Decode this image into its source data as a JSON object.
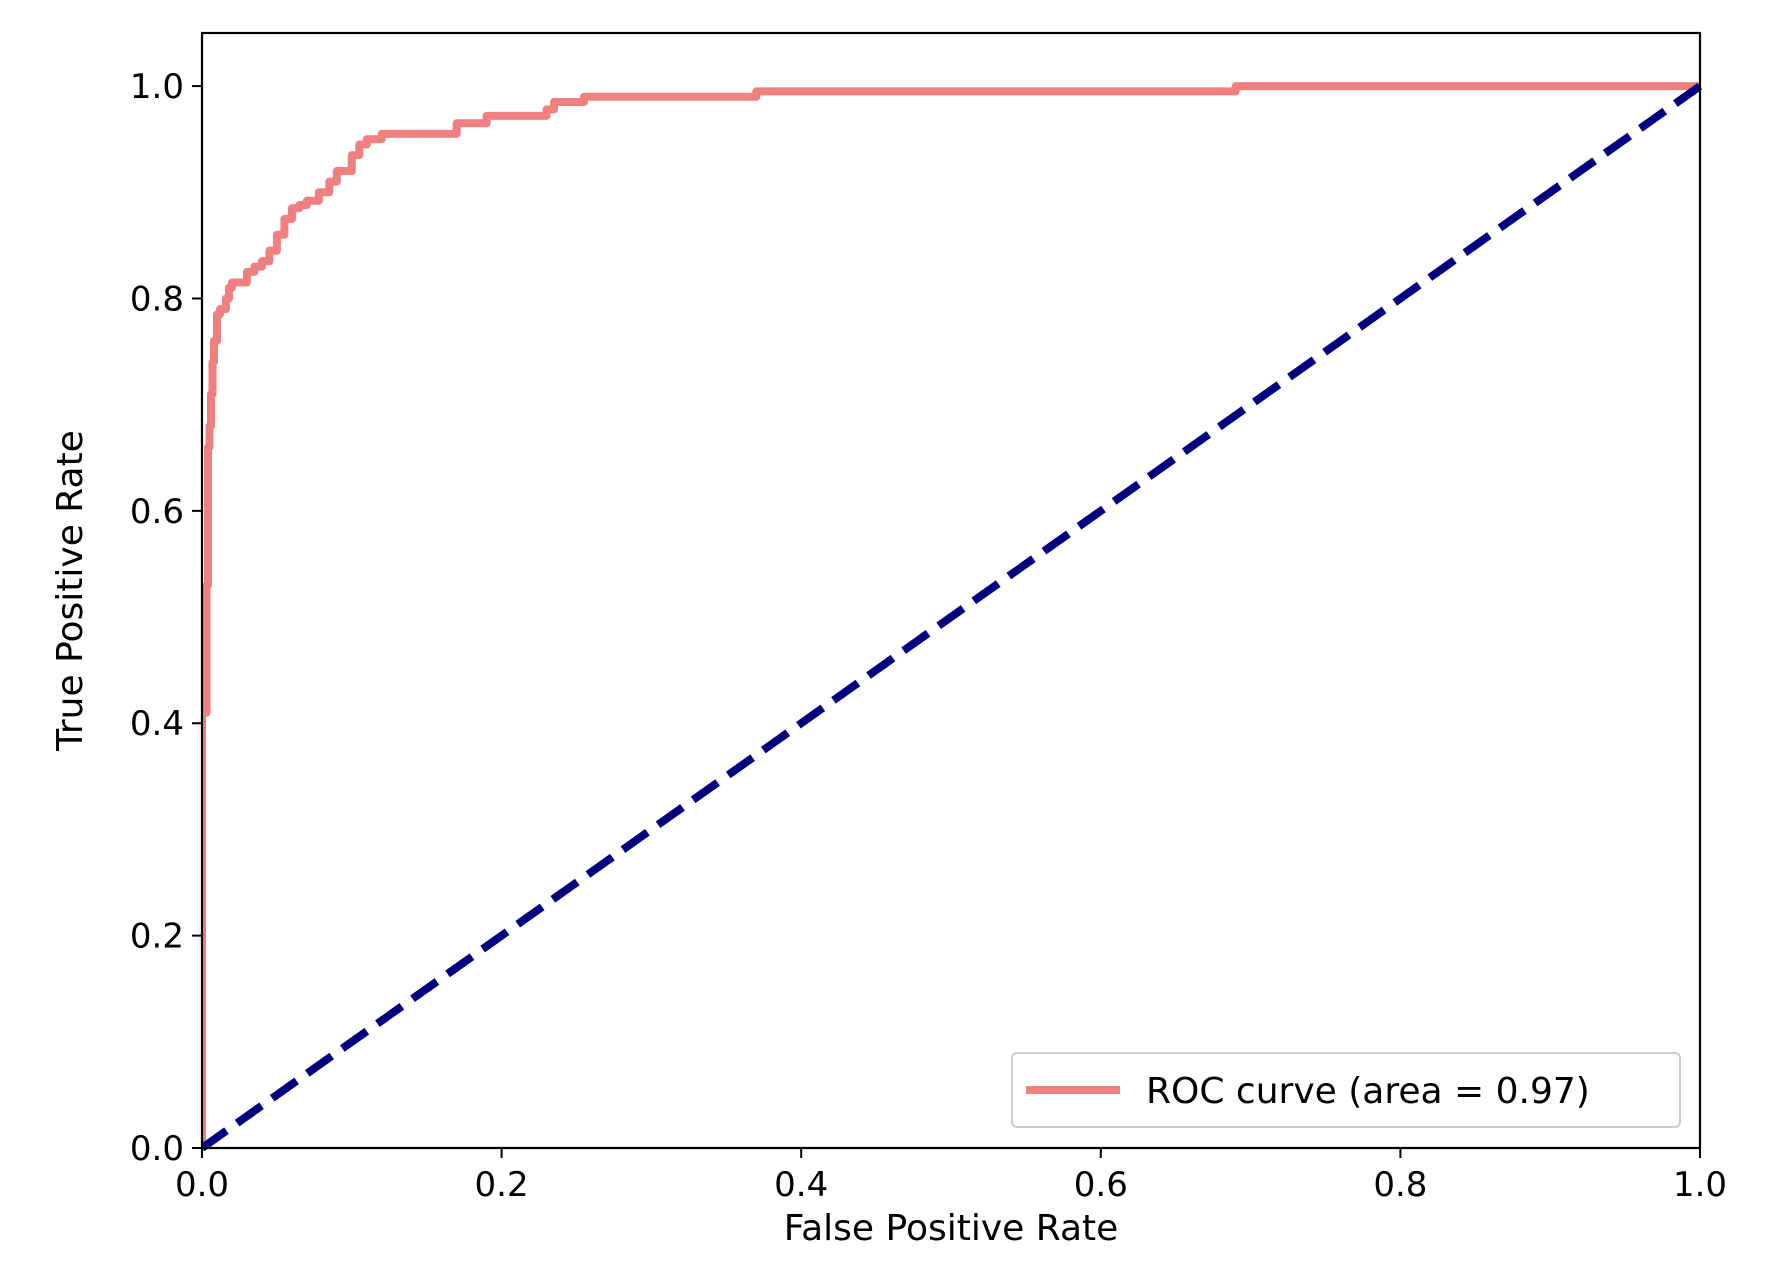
{
  "chart_data": {
    "type": "line",
    "xlabel": "False Positive Rate",
    "ylabel": "True Positive Rate",
    "xlim": [
      0.0,
      1.0
    ],
    "ylim": [
      0.0,
      1.05
    ],
    "xticks": [
      "0.0",
      "0.2",
      "0.4",
      "0.6",
      "0.8",
      "1.0"
    ],
    "yticks": [
      "0.0",
      "0.2",
      "0.4",
      "0.6",
      "0.8",
      "1.0"
    ],
    "grid": false,
    "legend_position": "lower-right",
    "series": [
      {
        "name": "ROC curve (area = 0.97)",
        "color": "#f08080",
        "style": "solid",
        "x": [
          0.0,
          0.0,
          0.003,
          0.003,
          0.004,
          0.004,
          0.005,
          0.005,
          0.006,
          0.006,
          0.007,
          0.007,
          0.008,
          0.008,
          0.01,
          0.01,
          0.012,
          0.012,
          0.016,
          0.016,
          0.018,
          0.018,
          0.02,
          0.02,
          0.03,
          0.03,
          0.035,
          0.035,
          0.04,
          0.04,
          0.045,
          0.045,
          0.05,
          0.05,
          0.055,
          0.055,
          0.06,
          0.06,
          0.065,
          0.065,
          0.07,
          0.07,
          0.078,
          0.078,
          0.085,
          0.085,
          0.09,
          0.09,
          0.1,
          0.1,
          0.105,
          0.105,
          0.11,
          0.11,
          0.12,
          0.12,
          0.17,
          0.17,
          0.19,
          0.19,
          0.23,
          0.23,
          0.235,
          0.235,
          0.255,
          0.255,
          0.37,
          0.37,
          0.69,
          0.69,
          1.0
        ],
        "y": [
          0.0,
          0.41,
          0.41,
          0.53,
          0.53,
          0.66,
          0.66,
          0.68,
          0.68,
          0.71,
          0.71,
          0.74,
          0.74,
          0.76,
          0.76,
          0.785,
          0.785,
          0.79,
          0.79,
          0.8,
          0.8,
          0.81,
          0.81,
          0.815,
          0.815,
          0.825,
          0.825,
          0.83,
          0.83,
          0.835,
          0.835,
          0.845,
          0.845,
          0.86,
          0.86,
          0.875,
          0.875,
          0.885,
          0.885,
          0.888,
          0.888,
          0.892,
          0.892,
          0.9,
          0.9,
          0.91,
          0.91,
          0.92,
          0.92,
          0.935,
          0.935,
          0.945,
          0.945,
          0.95,
          0.95,
          0.955,
          0.955,
          0.965,
          0.965,
          0.972,
          0.972,
          0.978,
          0.978,
          0.985,
          0.985,
          0.99,
          0.99,
          0.995,
          0.995,
          1.0,
          1.0
        ]
      },
      {
        "color": "#000080",
        "style": "dashed",
        "x": [
          0.0,
          1.0
        ],
        "y": [
          0.0,
          1.0
        ]
      }
    ]
  }
}
